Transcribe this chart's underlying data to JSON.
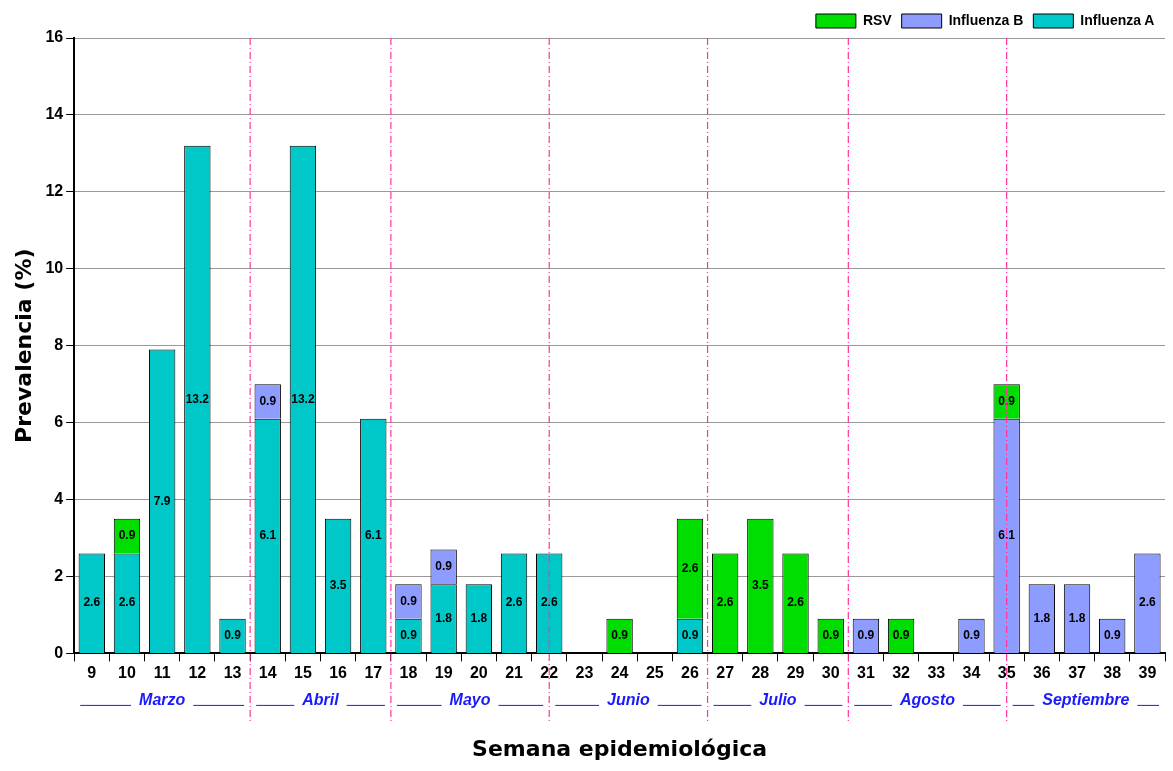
{
  "chart_data": {
    "type": "bar",
    "stacked": true,
    "xlabel": "Semana epidemiológica",
    "ylabel": "Prevalencia (%)",
    "x": [
      9,
      10,
      11,
      12,
      13,
      14,
      15,
      16,
      17,
      18,
      19,
      20,
      21,
      22,
      23,
      24,
      25,
      26,
      27,
      28,
      29,
      30,
      31,
      32,
      33,
      34,
      35,
      36,
      37,
      38,
      39
    ],
    "xlim": [
      8.5,
      39.5
    ],
    "xticks": [
      9,
      10,
      11,
      12,
      13,
      14,
      15,
      16,
      17,
      18,
      19,
      20,
      21,
      22,
      23,
      24,
      25,
      26,
      27,
      28,
      29,
      30,
      31,
      32,
      33,
      34,
      35,
      36,
      37,
      38,
      39
    ],
    "series": [
      {
        "name": "Influenza A",
        "color": "#00c8c8",
        "values": [
          2.6,
          2.6,
          7.9,
          13.2,
          0.9,
          6.1,
          13.2,
          3.5,
          6.1,
          0.9,
          1.8,
          1.8,
          2.6,
          2.6,
          null,
          null,
          null,
          0.9,
          null,
          null,
          null,
          null,
          null,
          null,
          null,
          null,
          null,
          null,
          null,
          null,
          null
        ]
      },
      {
        "name": "Influenza B",
        "color": "#8f9cff",
        "values": [
          null,
          null,
          null,
          null,
          null,
          0.9,
          null,
          null,
          null,
          0.9,
          0.9,
          null,
          null,
          null,
          null,
          null,
          null,
          null,
          null,
          null,
          null,
          null,
          0.9,
          null,
          null,
          0.9,
          6.1,
          1.8,
          1.8,
          0.9,
          2.6
        ]
      },
      {
        "name": "RSV",
        "color": "#00dd00",
        "values": [
          null,
          0.9,
          null,
          null,
          null,
          null,
          null,
          null,
          null,
          null,
          null,
          null,
          null,
          null,
          null,
          0.9,
          null,
          2.6,
          2.6,
          3.5,
          2.6,
          0.9,
          null,
          0.9,
          null,
          null,
          0.9,
          null,
          null,
          null,
          null
        ]
      }
    ],
    "ylim": [
      0,
      16
    ],
    "yticks": [
      0,
      2,
      4,
      6,
      8,
      10,
      12,
      14,
      16
    ],
    "grid": "y",
    "legend": "top right",
    "data_labels": true,
    "ref_lines": [
      {
        "axis": "x",
        "value": 13.5,
        "color": "#ff3399",
        "line_style": "dashed"
      },
      {
        "axis": "x",
        "value": 17.5,
        "color": "#ff3399",
        "line_style": "dashed"
      },
      {
        "axis": "x",
        "value": 22,
        "color": "#ff3399",
        "line_style": "dashed"
      },
      {
        "axis": "x",
        "value": 26.5,
        "color": "#ff3399",
        "line_style": "dashed"
      },
      {
        "axis": "x",
        "value": 30.5,
        "color": "#ff3399",
        "line_style": "dashed"
      },
      {
        "axis": "x",
        "value": 35,
        "color": "#ff3399",
        "line_style": "dashed"
      }
    ],
    "annotations": [
      "Marzo",
      "Abril",
      "Mayo",
      "Junio",
      "Julio",
      "Agosto",
      "Septiembre"
    ]
  }
}
